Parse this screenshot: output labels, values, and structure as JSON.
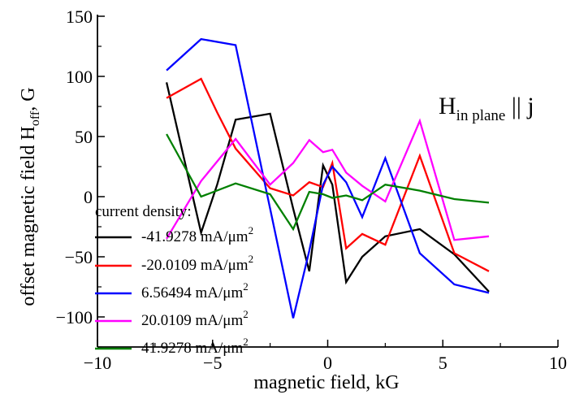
{
  "chart_data": {
    "type": "line",
    "xlabel": "magnetic field, kG",
    "ylabel": {
      "main": "offset magnetic field H",
      "sub": "off",
      "tail": ", G"
    },
    "xlim": [
      -10,
      10
    ],
    "ylim": [
      -125,
      150
    ],
    "xticks": [
      -10,
      -5,
      0,
      5,
      10
    ],
    "yticks": [
      150,
      100,
      50,
      0,
      -50,
      -100
    ],
    "grid": false,
    "annotation": {
      "main": "H",
      "sub": "in plane",
      "tail": " || j"
    },
    "legend": {
      "title": "current density:",
      "placement": "left",
      "unit_main": "mA/μm",
      "unit_sup": "2"
    },
    "series": [
      {
        "name": "-41.9278",
        "color": "#000000",
        "x": [
          -7.0,
          -5.5,
          -4.8,
          -4.0,
          -2.5,
          -1.5,
          -0.8,
          -0.2,
          0.2,
          0.8,
          1.5,
          2.5,
          4.0,
          5.5,
          7.0
        ],
        "y": [
          95,
          -30,
          10,
          64,
          69,
          -10,
          -62,
          26,
          10,
          -71,
          -50,
          -33,
          -27,
          -48,
          -79
        ]
      },
      {
        "name": "-20.0109",
        "color": "#ff0000",
        "x": [
          -7.0,
          -5.5,
          -4.8,
          -4.0,
          -2.5,
          -1.5,
          -0.8,
          -0.2,
          0.2,
          0.8,
          1.5,
          2.5,
          4.0,
          5.5,
          7.0
        ],
        "y": [
          82,
          98,
          70,
          40,
          7,
          1,
          12,
          8,
          28,
          -43,
          -31,
          -40,
          34,
          -47,
          -62
        ]
      },
      {
        "name": "6.56494",
        "color": "#0000ff",
        "x": [
          -7.0,
          -5.5,
          -4.0,
          -2.5,
          -1.5,
          -0.8,
          -0.2,
          0.2,
          0.8,
          1.5,
          2.5,
          4.0,
          5.5,
          7.0
        ],
        "y": [
          105,
          131,
          126,
          -10,
          -101,
          -45,
          10,
          25,
          12,
          -17,
          32,
          -47,
          -73,
          -80
        ]
      },
      {
        "name": "20.0109 ",
        "color": "#ff00ff",
        "x": [
          -7.0,
          -5.5,
          -4.0,
          -2.5,
          -1.5,
          -0.8,
          -0.2,
          0.2,
          0.8,
          1.5,
          2.5,
          4.0,
          5.5,
          7.0
        ],
        "y": [
          -35,
          13,
          48,
          10,
          28,
          47,
          37,
          39,
          20,
          9,
          -4,
          63,
          -36,
          -33
        ]
      },
      {
        "name": "41.9278",
        "color": "#008000",
        "x": [
          -7.0,
          -5.5,
          -4.0,
          -2.5,
          -1.5,
          -0.8,
          -0.2,
          0.2,
          0.8,
          1.5,
          2.5,
          4.0,
          5.5,
          7.0
        ],
        "y": [
          52,
          0,
          11,
          2,
          -27,
          4,
          2,
          -1,
          1,
          -3,
          10,
          5,
          -2,
          -5
        ]
      }
    ]
  }
}
